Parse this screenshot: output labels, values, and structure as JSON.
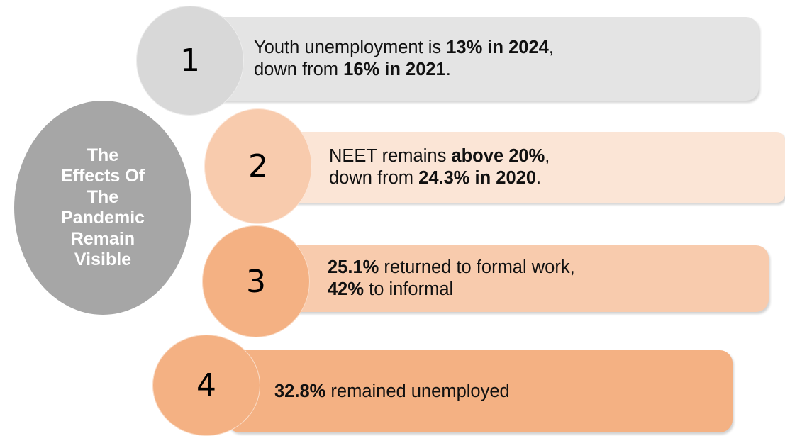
{
  "center": {
    "title_lines": [
      "The",
      "Effects Of",
      "The",
      "Pandemic",
      "Remain",
      "Visible"
    ],
    "color": "#a6a6a6"
  },
  "items": [
    {
      "number": "1",
      "line1": [
        {
          "t": "Youth unemployment is ",
          "b": false
        },
        {
          "t": "13% in 2024",
          "b": true
        },
        {
          "t": ",",
          "b": false
        }
      ],
      "line2": [
        {
          "t": "down from ",
          "b": false
        },
        {
          "t": "16% in 2021",
          "b": true
        },
        {
          "t": ".",
          "b": false
        }
      ],
      "bar_color": "#e4e4e4",
      "circle_color": "#d8d8d8"
    },
    {
      "number": "2",
      "line1": [
        {
          "t": "NEET remains ",
          "b": false
        },
        {
          "t": "above 20%",
          "b": true
        },
        {
          "t": ",",
          "b": false
        }
      ],
      "line2": [
        {
          "t": "down from ",
          "b": false
        },
        {
          "t": "24.3% in 2020",
          "b": true
        },
        {
          "t": ".",
          "b": false
        }
      ],
      "bar_color": "#fbe5d6",
      "circle_color": "#f8cbad"
    },
    {
      "number": "3",
      "line1": [
        {
          "t": "25.1%",
          "b": true
        },
        {
          "t": " returned to formal work,",
          "b": false
        }
      ],
      "line2": [
        {
          "t": "42%",
          "b": true
        },
        {
          "t": " to informal",
          "b": false
        }
      ],
      "bar_color": "#f8cbad",
      "circle_color": "#f4b183"
    },
    {
      "number": "4",
      "line1": [
        {
          "t": "32.8%",
          "b": true
        },
        {
          "t": " remained unemployed",
          "b": false
        }
      ],
      "line2": [],
      "bar_color": "#f4b183",
      "circle_color": "#f4b183"
    }
  ]
}
